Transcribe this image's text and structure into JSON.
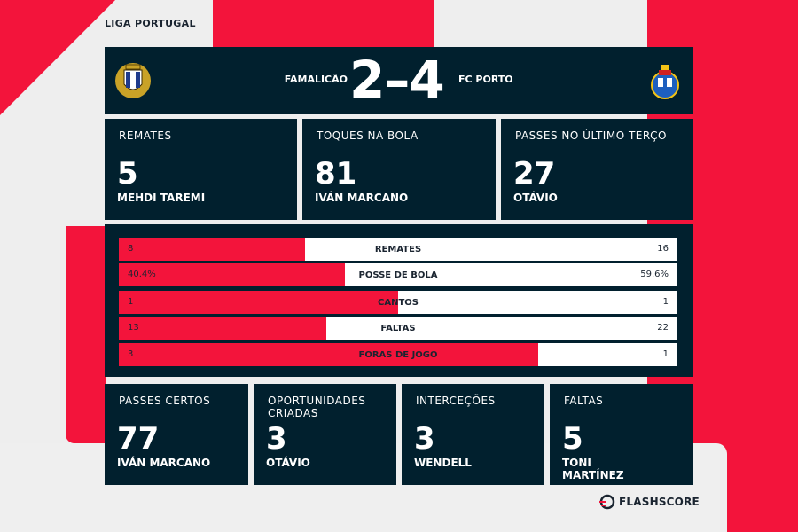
{
  "competition": "LIGA PORTUGAL",
  "match": {
    "home_team": "FAMALICÃO",
    "away_team": "FC PORTO",
    "score": "2–4"
  },
  "top_cards": [
    {
      "label": "REMATES",
      "value": "5",
      "player": "MEHDI TAREMI"
    },
    {
      "label": "TOQUES NA BOLA",
      "value": "81",
      "player": "IVÁN MARCANO"
    },
    {
      "label": "PASSES NO ÚLTIMO TERÇO",
      "value": "27",
      "player": "OTÁVIO"
    }
  ],
  "team_stats": [
    {
      "name": "REMATES",
      "home": "8",
      "away": "16",
      "home_share": 0.333
    },
    {
      "name": "POSSE DE BOLA",
      "home": "40.4%",
      "away": "59.6%",
      "home_share": 0.404
    },
    {
      "name": "CANTOS",
      "home": "1",
      "away": "1",
      "home_share": 0.5
    },
    {
      "name": "FALTAS",
      "home": "13",
      "away": "22",
      "home_share": 0.371
    },
    {
      "name": "FORAS DE JOGO",
      "home": "3",
      "away": "1",
      "home_share": 0.75
    }
  ],
  "bottom_cards": [
    {
      "label": "PASSES CERTOS",
      "value": "77",
      "player": "IVÁN MARCANO"
    },
    {
      "label": "OPORTUNIDADES CRIADAS",
      "value": "3",
      "player": "OTÁVIO"
    },
    {
      "label": "INTERCEÇÕES",
      "value": "3",
      "player": "WENDELL"
    },
    {
      "label": "FALTAS",
      "value": "5",
      "player": "TONI MARTÍNEZ"
    }
  ],
  "brand": "FLASHSCORE",
  "colors": {
    "accent": "#f3143b",
    "panel": "#01202e",
    "background": "#eeeeee"
  }
}
